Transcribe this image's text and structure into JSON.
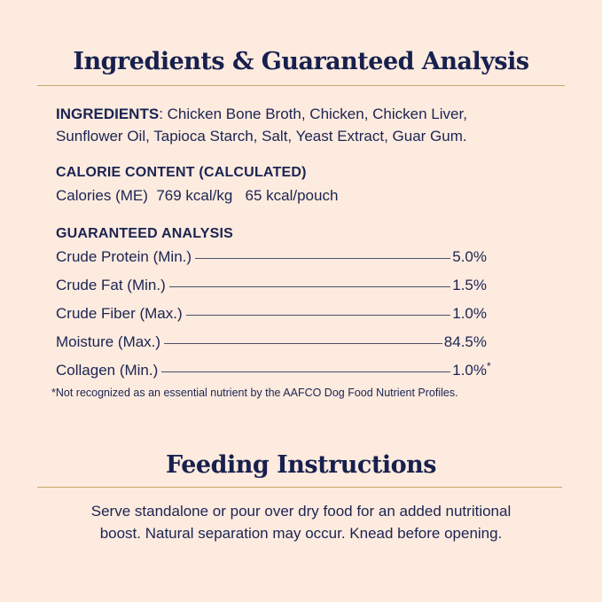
{
  "section1": {
    "title": "Ingredients & Guaranteed Analysis"
  },
  "ingredients": {
    "label": "INGREDIENTS",
    "separator": ": ",
    "line1": "Chicken Bone Broth, Chicken, Chicken Liver,",
    "line2": "Sunflower Oil, Tapioca Starch, Salt, Yeast Extract, Guar Gum."
  },
  "calories": {
    "heading": "CALORIE CONTENT (CALCULATED)",
    "text": "Calories (ME)  769 kcal/kg   65 kcal/pouch"
  },
  "analysis": {
    "heading": "GUARANTEED ANALYSIS",
    "rows": [
      {
        "label": "Crude Protein (Min.)",
        "value": "5.0%"
      },
      {
        "label": "Crude Fat (Min.)",
        "value": "1.5%"
      },
      {
        "label": "Crude Fiber (Max.)",
        "value": "1.0%"
      },
      {
        "label": "Moisture (Max.)",
        "value": "84.5%"
      },
      {
        "label": "Collagen (Min.)",
        "value": "1.0%",
        "note": "*"
      }
    ],
    "footnote": "*Not recognized as an essential nutrient by the AAFCO Dog Food Nutrient Profiles."
  },
  "section2": {
    "title": "Feeding Instructions",
    "line1": "Serve standalone or pour over dry food for an added nutritional",
    "line2": "boost. Natural separation may occur. Knead before opening."
  },
  "colors": {
    "background": "#fdebdf",
    "text": "#1b2452",
    "rule": "#c9a56c"
  }
}
